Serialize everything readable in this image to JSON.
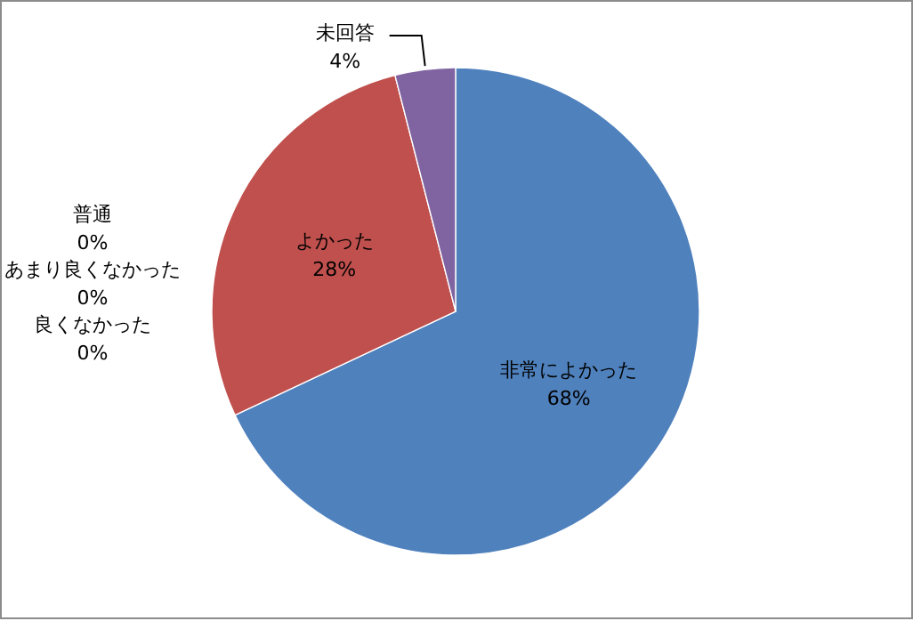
{
  "chart_data": {
    "type": "pie",
    "categories": [
      "非常によかった",
      "よかった",
      "普通",
      "あまり良くなかった",
      "良くなかった",
      "未回答"
    ],
    "values": [
      68,
      28,
      0,
      0,
      0,
      4
    ],
    "value_labels": [
      "68%",
      "28%",
      "0%",
      "0%",
      "0%",
      "4%"
    ],
    "colors": [
      "#4f81bd",
      "#c0504d",
      null,
      null,
      null,
      "#8064a2"
    ]
  }
}
